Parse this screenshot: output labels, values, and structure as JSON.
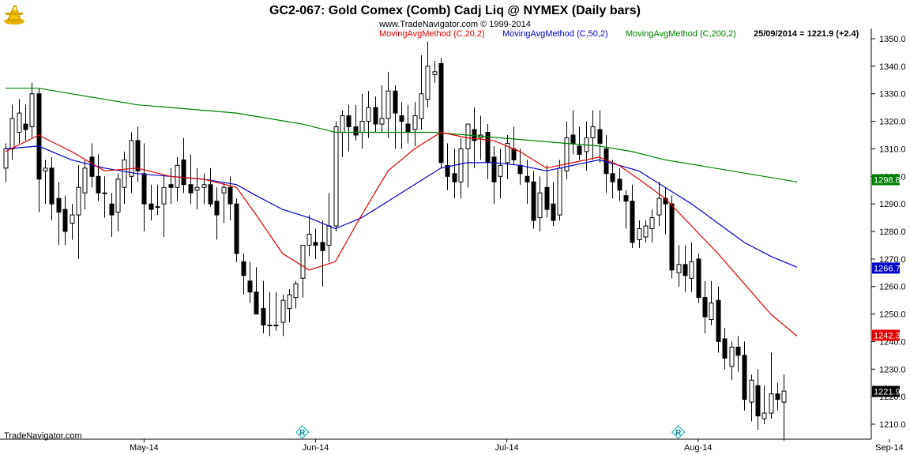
{
  "header": {
    "title": "GC2-067:  Gold Comex (Comb) Cadj Liq @ NYMEX  (Daily bars)",
    "copyright": "www.TradeNavigator.com © 1999-2014"
  },
  "footer": {
    "brand": "TradeNavigator.com"
  },
  "legend": [
    {
      "label": "MovingAvgMethod (C,20,2)",
      "color": "#e00000"
    },
    {
      "label": "MovingAvgMethod (C,50,2)",
      "color": "#0000cc"
    },
    {
      "label": "MovingAvgMethod (C,200,2)",
      "color": "#008000"
    }
  ],
  "last_bar": "25/09/2014 = 1221.9 (+2.4)",
  "icons": {
    "logo": "trade-navigator-logo-icon",
    "marker": "r-diamond-marker-icon"
  },
  "colors": {
    "ma20": "#e00000",
    "ma50": "#0000cc",
    "ma200": "#008000",
    "up": "#ffffff",
    "down": "#000000"
  },
  "chart_data": {
    "type": "candlestick",
    "ylim": [
      1203,
      1352
    ],
    "y_ticks": [
      "1210.0",
      "1220.0",
      "1230.0",
      "1240.0",
      "1250.0",
      "1260.0",
      "1270.0",
      "1280.0",
      "1290.0",
      "1300.0",
      "1310.0",
      "1320.0",
      "1330.0",
      "1340.0",
      "1350.0"
    ],
    "x_labels": [
      {
        "label": "May-14",
        "bar": 21
      },
      {
        "label": "Jun-14",
        "bar": 47
      },
      {
        "label": "Jul-14",
        "bar": 76
      },
      {
        "label": "Aug-14",
        "bar": 105
      },
      {
        "label": "Sep-14",
        "bar": 134
      }
    ],
    "markers": [
      {
        "bar": 45,
        "label": "R"
      },
      {
        "bar": 102,
        "label": "R"
      }
    ],
    "value_tags": [
      {
        "value": "1298.8",
        "color": "#008000",
        "text_color": "#ffffff"
      },
      {
        "value": "1266.7",
        "color": "#0000cc",
        "text_color": "#ffffff"
      },
      {
        "value": "1242.3",
        "color": "#e00000",
        "text_color": "#ffffff"
      },
      {
        "value": "1221.9",
        "color": "#000000",
        "text_color": "#ffffff"
      }
    ],
    "bars": [
      [
        1303,
        1312,
        1298,
        1310
      ],
      [
        1310,
        1326,
        1306,
        1321
      ],
      [
        1316,
        1328,
        1312,
        1323
      ],
      [
        1319,
        1326,
        1313,
        1317
      ],
      [
        1318,
        1334,
        1314,
        1330
      ],
      [
        1330,
        1332,
        1287,
        1299
      ],
      [
        1302,
        1306,
        1290,
        1303
      ],
      [
        1303,
        1307,
        1284,
        1290
      ],
      [
        1292,
        1298,
        1275,
        1287
      ],
      [
        1288,
        1293,
        1275,
        1280
      ],
      [
        1283,
        1290,
        1277,
        1286
      ],
      [
        1286,
        1304,
        1270,
        1296
      ],
      [
        1294,
        1306,
        1288,
        1303
      ],
      [
        1307,
        1312,
        1296,
        1300
      ],
      [
        1300,
        1308,
        1291,
        1294
      ],
      [
        1294,
        1300,
        1285,
        1294
      ],
      [
        1290,
        1294,
        1278,
        1286
      ],
      [
        1287,
        1301,
        1280,
        1299
      ],
      [
        1296,
        1309,
        1290,
        1306
      ],
      [
        1300,
        1316,
        1294,
        1313
      ],
      [
        1313,
        1318,
        1298,
        1302
      ],
      [
        1301,
        1312,
        1280,
        1290
      ],
      [
        1290,
        1297,
        1284,
        1288
      ],
      [
        1289,
        1297,
        1286,
        1289
      ],
      [
        1290,
        1300,
        1278,
        1296
      ],
      [
        1297,
        1303,
        1290,
        1296
      ],
      [
        1296,
        1307,
        1291,
        1304
      ],
      [
        1306,
        1314,
        1294,
        1297
      ],
      [
        1297,
        1308,
        1290,
        1294
      ],
      [
        1295,
        1303,
        1288,
        1296
      ],
      [
        1296,
        1301,
        1290,
        1297
      ],
      [
        1297,
        1303,
        1289,
        1290
      ],
      [
        1291,
        1296,
        1277,
        1286
      ],
      [
        1294,
        1298,
        1283,
        1296
      ],
      [
        1296,
        1300,
        1284,
        1290
      ],
      [
        1290,
        1292,
        1269,
        1272
      ],
      [
        1269,
        1272,
        1257,
        1264
      ],
      [
        1262,
        1269,
        1254,
        1258
      ],
      [
        1258,
        1267,
        1250,
        1250
      ],
      [
        1252,
        1262,
        1243,
        1246
      ],
      [
        1246,
        1258,
        1242,
        1246
      ],
      [
        1246,
        1258,
        1244,
        1246
      ],
      [
        1247,
        1257,
        1242,
        1255
      ],
      [
        1252,
        1259,
        1247,
        1257
      ],
      [
        1256,
        1262,
        1252,
        1261
      ],
      [
        1263,
        1270,
        1256,
        1275
      ],
      [
        1275,
        1286,
        1271,
        1279
      ],
      [
        1276,
        1281,
        1270,
        1275
      ],
      [
        1276,
        1284,
        1260,
        1273
      ],
      [
        1275,
        1294,
        1269,
        1282
      ],
      [
        1282,
        1320,
        1280,
        1318
      ],
      [
        1316,
        1324,
        1307,
        1322
      ],
      [
        1322,
        1326,
        1309,
        1318
      ],
      [
        1318,
        1326,
        1313,
        1315
      ],
      [
        1316,
        1330,
        1310,
        1320
      ],
      [
        1320,
        1331,
        1314,
        1325
      ],
      [
        1325,
        1329,
        1316,
        1319
      ],
      [
        1319,
        1333,
        1316,
        1321
      ],
      [
        1321,
        1338,
        1314,
        1331
      ],
      [
        1331,
        1333,
        1310,
        1323
      ],
      [
        1322,
        1327,
        1310,
        1320
      ],
      [
        1319,
        1326,
        1312,
        1316
      ],
      [
        1317,
        1327,
        1311,
        1322
      ],
      [
        1321,
        1344,
        1317,
        1330
      ],
      [
        1328,
        1349,
        1325,
        1340
      ],
      [
        1337,
        1342,
        1334,
        1338
      ],
      [
        1341,
        1343,
        1303,
        1305
      ],
      [
        1304,
        1312,
        1295,
        1300
      ],
      [
        1301,
        1310,
        1292,
        1298
      ],
      [
        1298,
        1314,
        1292,
        1310
      ],
      [
        1310,
        1318,
        1296,
        1319
      ],
      [
        1317,
        1325,
        1303,
        1313
      ],
      [
        1314,
        1322,
        1306,
        1315
      ],
      [
        1316,
        1319,
        1299,
        1305
      ],
      [
        1307,
        1311,
        1290,
        1298
      ],
      [
        1300,
        1310,
        1292,
        1304
      ],
      [
        1305,
        1315,
        1299,
        1312
      ],
      [
        1310,
        1318,
        1304,
        1306
      ],
      [
        1304,
        1310,
        1297,
        1301
      ],
      [
        1300,
        1306,
        1290,
        1298
      ],
      [
        1298,
        1302,
        1281,
        1284
      ],
      [
        1285,
        1300,
        1280,
        1294
      ],
      [
        1296,
        1304,
        1285,
        1288
      ],
      [
        1290,
        1298,
        1282,
        1284
      ],
      [
        1286,
        1306,
        1284,
        1303
      ],
      [
        1302,
        1320,
        1299,
        1314
      ],
      [
        1315,
        1324,
        1308,
        1312
      ],
      [
        1311,
        1318,
        1306,
        1308
      ],
      [
        1309,
        1320,
        1302,
        1314
      ],
      [
        1314,
        1324,
        1306,
        1318
      ],
      [
        1317,
        1324,
        1305,
        1312
      ],
      [
        1310,
        1315,
        1294,
        1301
      ],
      [
        1301,
        1306,
        1292,
        1298
      ],
      [
        1299,
        1303,
        1291,
        1295
      ],
      [
        1293,
        1295,
        1281,
        1291
      ],
      [
        1291,
        1297,
        1274,
        1276
      ],
      [
        1277,
        1284,
        1274,
        1281
      ],
      [
        1278,
        1284,
        1276,
        1282
      ],
      [
        1281,
        1288,
        1276,
        1285
      ],
      [
        1286,
        1298,
        1282,
        1292
      ],
      [
        1292,
        1296,
        1279,
        1290
      ],
      [
        1290,
        1293,
        1263,
        1266
      ],
      [
        1265,
        1275,
        1260,
        1268
      ],
      [
        1268,
        1275,
        1258,
        1264
      ],
      [
        1263,
        1276,
        1258,
        1269
      ],
      [
        1270,
        1272,
        1254,
        1256
      ],
      [
        1256,
        1262,
        1243,
        1249
      ],
      [
        1248,
        1262,
        1246,
        1254
      ],
      [
        1255,
        1260,
        1236,
        1240
      ],
      [
        1241,
        1245,
        1230,
        1234
      ],
      [
        1231,
        1240,
        1226,
        1238
      ],
      [
        1238,
        1242,
        1229,
        1235
      ],
      [
        1235,
        1240,
        1215,
        1219
      ],
      [
        1218,
        1228,
        1211,
        1226
      ],
      [
        1224,
        1230,
        1208,
        1213
      ],
      [
        1212,
        1224,
        1210,
        1214
      ],
      [
        1214,
        1236,
        1212,
        1221
      ],
      [
        1221,
        1225,
        1215,
        1219
      ],
      [
        1218,
        1228,
        1204,
        1222
      ]
    ],
    "ma20": [
      [
        0,
        1309
      ],
      [
        5,
        1315
      ],
      [
        10,
        1309
      ],
      [
        15,
        1302
      ],
      [
        20,
        1303
      ],
      [
        25,
        1300
      ],
      [
        30,
        1299
      ],
      [
        35,
        1296
      ],
      [
        38,
        1286
      ],
      [
        42,
        1272
      ],
      [
        46,
        1266
      ],
      [
        50,
        1269
      ],
      [
        54,
        1286
      ],
      [
        58,
        1302
      ],
      [
        62,
        1310
      ],
      [
        66,
        1316
      ],
      [
        70,
        1314
      ],
      [
        74,
        1313
      ],
      [
        78,
        1309
      ],
      [
        82,
        1303
      ],
      [
        86,
        1305
      ],
      [
        90,
        1307
      ],
      [
        93,
        1304
      ],
      [
        96,
        1299
      ],
      [
        100,
        1292
      ],
      [
        104,
        1282
      ],
      [
        108,
        1272
      ],
      [
        112,
        1261
      ],
      [
        116,
        1250
      ],
      [
        120,
        1242
      ]
    ],
    "ma50": [
      [
        0,
        1310
      ],
      [
        5,
        1311
      ],
      [
        10,
        1306
      ],
      [
        15,
        1303
      ],
      [
        20,
        1301
      ],
      [
        25,
        1300
      ],
      [
        30,
        1299
      ],
      [
        35,
        1297
      ],
      [
        38,
        1293
      ],
      [
        42,
        1288
      ],
      [
        46,
        1285
      ],
      [
        50,
        1281
      ],
      [
        54,
        1285
      ],
      [
        58,
        1291
      ],
      [
        62,
        1297
      ],
      [
        66,
        1303
      ],
      [
        70,
        1305
      ],
      [
        74,
        1305
      ],
      [
        78,
        1304
      ],
      [
        82,
        1302
      ],
      [
        86,
        1304
      ],
      [
        90,
        1306
      ],
      [
        93,
        1304
      ],
      [
        96,
        1302
      ],
      [
        100,
        1296
      ],
      [
        104,
        1290
      ],
      [
        108,
        1283
      ],
      [
        112,
        1276
      ],
      [
        116,
        1271
      ],
      [
        120,
        1267
      ]
    ],
    "ma200": [
      [
        0,
        1332
      ],
      [
        5,
        1332
      ],
      [
        10,
        1330
      ],
      [
        15,
        1328
      ],
      [
        20,
        1326
      ],
      [
        25,
        1325
      ],
      [
        30,
        1324
      ],
      [
        35,
        1323
      ],
      [
        40,
        1321
      ],
      [
        45,
        1319
      ],
      [
        50,
        1316
      ],
      [
        55,
        1316
      ],
      [
        60,
        1316
      ],
      [
        65,
        1316
      ],
      [
        70,
        1315
      ],
      [
        75,
        1314
      ],
      [
        80,
        1313
      ],
      [
        85,
        1312
      ],
      [
        90,
        1311
      ],
      [
        95,
        1309
      ],
      [
        100,
        1306
      ],
      [
        105,
        1304
      ],
      [
        110,
        1302
      ],
      [
        115,
        1300
      ],
      [
        120,
        1298
      ]
    ]
  }
}
